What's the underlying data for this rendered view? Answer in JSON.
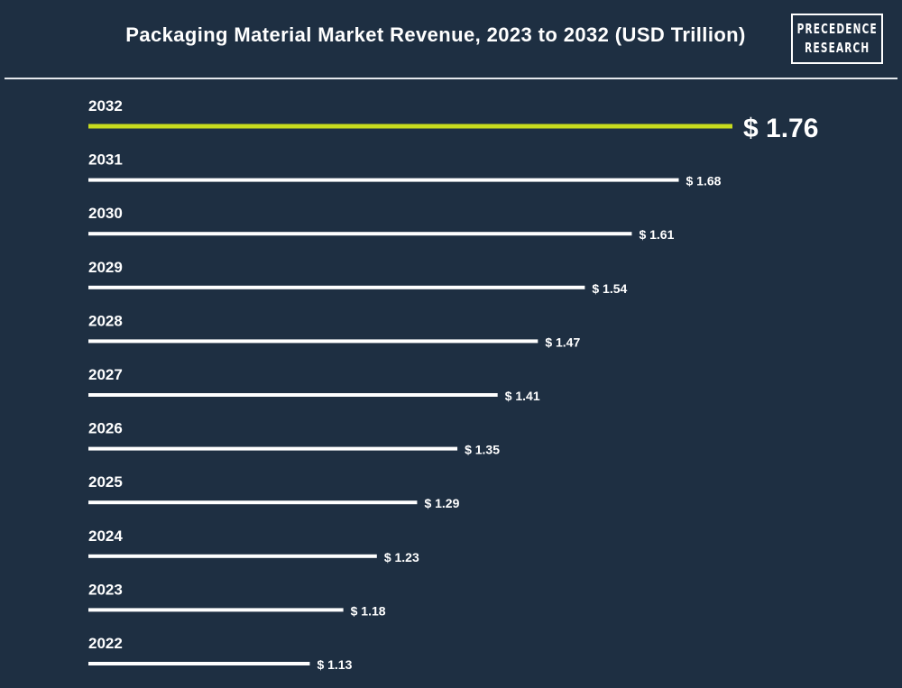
{
  "header": {
    "title": "Packaging Material Market Revenue, 2023 to 2032 (USD Trillion)",
    "logo_line1": "PRECEDENCE",
    "logo_line2": "RESEARCH"
  },
  "colors": {
    "background": "#1e2f42",
    "bar": "#ffffff",
    "highlight_bar": "#c8dc1e",
    "text": "#ffffff"
  },
  "chart_data": {
    "type": "bar",
    "orientation": "horizontal",
    "title": "Packaging Material Market Revenue, 2023 to 2032 (USD Trillion)",
    "categories": [
      "2032",
      "2031",
      "2030",
      "2029",
      "2028",
      "2027",
      "2026",
      "2025",
      "2024",
      "2023",
      "2022"
    ],
    "values": [
      1.76,
      1.68,
      1.61,
      1.54,
      1.47,
      1.41,
      1.35,
      1.29,
      1.23,
      1.18,
      1.13
    ],
    "value_labels": [
      "$ 1.76",
      "$ 1.68",
      "$ 1.61",
      "$ 1.54",
      "$ 1.47",
      "$ 1.41",
      "$ 1.35",
      "$ 1.29",
      "$ 1.23",
      "$ 1.18",
      "$ 1.13"
    ],
    "highlight_index": 0,
    "xlim": [
      0.8,
      1.76
    ],
    "xlabel": "",
    "ylabel": "",
    "grid": false,
    "legend": "none"
  }
}
